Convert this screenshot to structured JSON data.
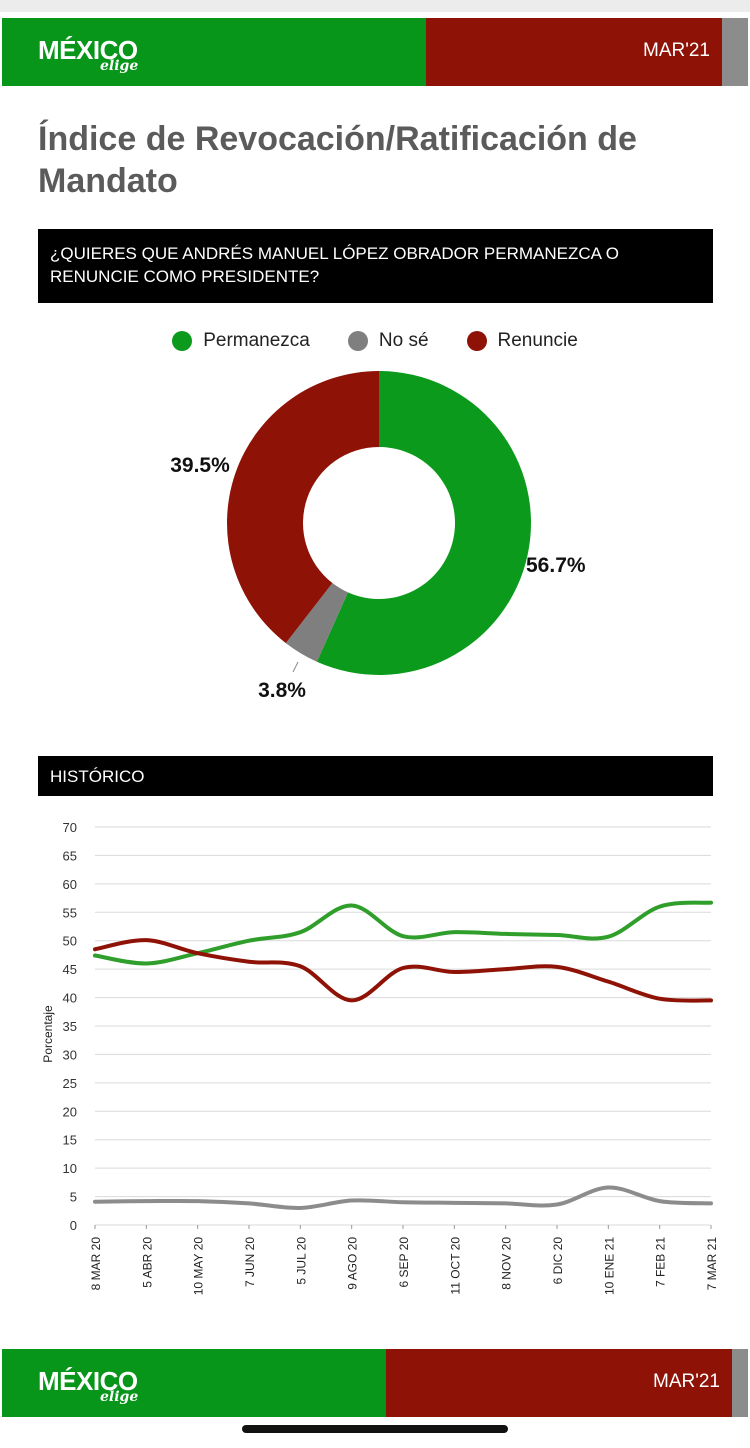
{
  "brand": {
    "name": "MÉXICO",
    "tagline": "elige",
    "period": "MAR'21",
    "colors": {
      "green": "#07961a",
      "red": "#8e1206",
      "grey": "#8c8c8c"
    }
  },
  "page_title": "Índice de Revocación/Ratificación de Mandato",
  "question": "¿QUIERES QUE ANDRÉS MANUEL LÓPEZ OBRADOR PERMANEZCA O RENUNCIE COMO PRESIDENTE?",
  "historico_label": "HISTÓRICO",
  "chart_data": [
    {
      "type": "pie",
      "variant": "donut",
      "legend": [
        "Permanezca",
        "No sé",
        "Renuncie"
      ],
      "legend_position": "top",
      "slices": [
        {
          "label": "Permanezca",
          "value": 56.7,
          "display": "56.7%",
          "color": "#0c9a1c"
        },
        {
          "label": "No sé",
          "value": 3.8,
          "display": "3.8%",
          "color": "#7f7f7f"
        },
        {
          "label": "Renuncie",
          "value": 39.5,
          "display": "39.5%",
          "color": "#8e1206"
        }
      ]
    },
    {
      "type": "line",
      "title": "",
      "xlabel": "",
      "ylabel": "Porcentaje",
      "ylim": [
        0,
        70
      ],
      "yticks": [
        0,
        5,
        10,
        15,
        20,
        25,
        30,
        35,
        40,
        45,
        50,
        55,
        60,
        65,
        70
      ],
      "grid": true,
      "x": [
        "8 MAR 20",
        "5 ABR 20",
        "10 MAY 20",
        "7 JUN 20",
        "5 JUL 20",
        "9 AGO 20",
        "6 SEP 20",
        "11 OCT 20",
        "8 NOV 20",
        "6 DIC 20",
        "10 ENE 21",
        "7 FEB 21",
        "7 MAR 21"
      ],
      "series": [
        {
          "name": "Permanezca",
          "color": "#2f9e2a",
          "values": [
            47.4,
            46.0,
            47.8,
            50.0,
            51.5,
            56.2,
            50.8,
            51.5,
            51.2,
            51.0,
            50.7,
            56.0,
            56.7
          ]
        },
        {
          "name": "Renuncie",
          "color": "#8e1206",
          "values": [
            48.5,
            50.1,
            47.8,
            46.3,
            45.5,
            39.5,
            45.2,
            44.5,
            45.0,
            45.4,
            42.8,
            39.8,
            39.5
          ]
        },
        {
          "name": "No sé",
          "color": "#8c8c8c",
          "values": [
            4.1,
            4.2,
            4.2,
            3.8,
            3.0,
            4.3,
            4.0,
            3.9,
            3.8,
            3.6,
            6.6,
            4.2,
            3.8
          ]
        }
      ]
    }
  ]
}
